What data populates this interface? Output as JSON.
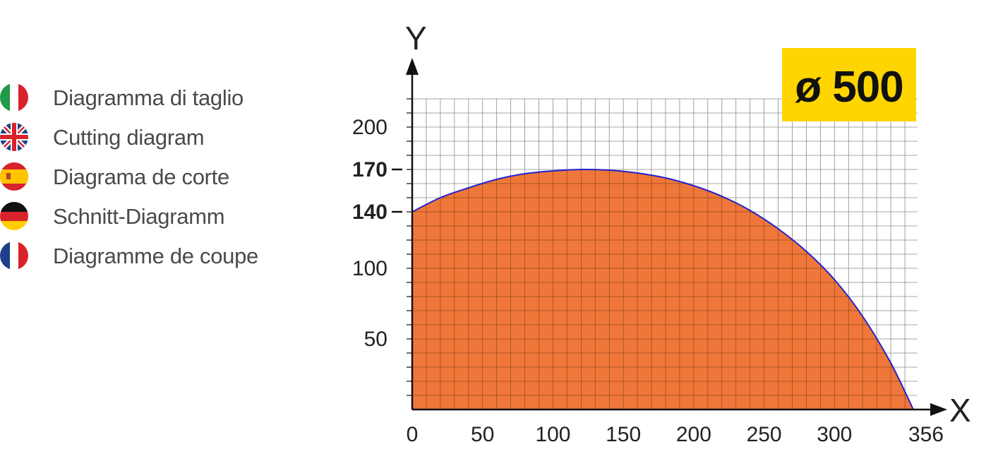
{
  "legend": {
    "items": [
      {
        "flag": "flag-italy-icon",
        "label": "Diagramma di taglio"
      },
      {
        "flag": "flag-uk-icon",
        "label": "Cutting diagram"
      },
      {
        "flag": "flag-spain-icon",
        "label": "Diagrama de corte"
      },
      {
        "flag": "flag-germany-icon",
        "label": "Schnitt-Diagramm"
      },
      {
        "flag": "flag-france-icon",
        "label": "Diagramme de coupe"
      }
    ]
  },
  "badge": {
    "label": "ø 500",
    "color": "#ffd500"
  },
  "chart_data": {
    "type": "area",
    "xlabel": "X",
    "ylabel": "Y",
    "xlim": [
      0,
      356
    ],
    "ylim": [
      0,
      220
    ],
    "x_ticks": [
      0,
      50,
      100,
      150,
      200,
      250,
      300,
      356
    ],
    "y_ticks": [
      50,
      100,
      140,
      170,
      200
    ],
    "y_ticks_emphasized": [
      140,
      170
    ],
    "grid": true,
    "grid_step": 10,
    "fill_color": "#ee6e2d",
    "outline_color": "#2222cc",
    "series": [
      {
        "x": [
          0,
          20,
          40,
          60,
          80,
          100,
          120,
          140,
          160,
          180,
          200,
          220,
          240,
          260,
          280,
          300,
          320,
          340,
          356
        ],
        "y": [
          140,
          150,
          157,
          163,
          167,
          169,
          170,
          169.5,
          167.5,
          164,
          158.5,
          151,
          141,
          128,
          112,
          92,
          66,
          33,
          0
        ]
      }
    ]
  }
}
